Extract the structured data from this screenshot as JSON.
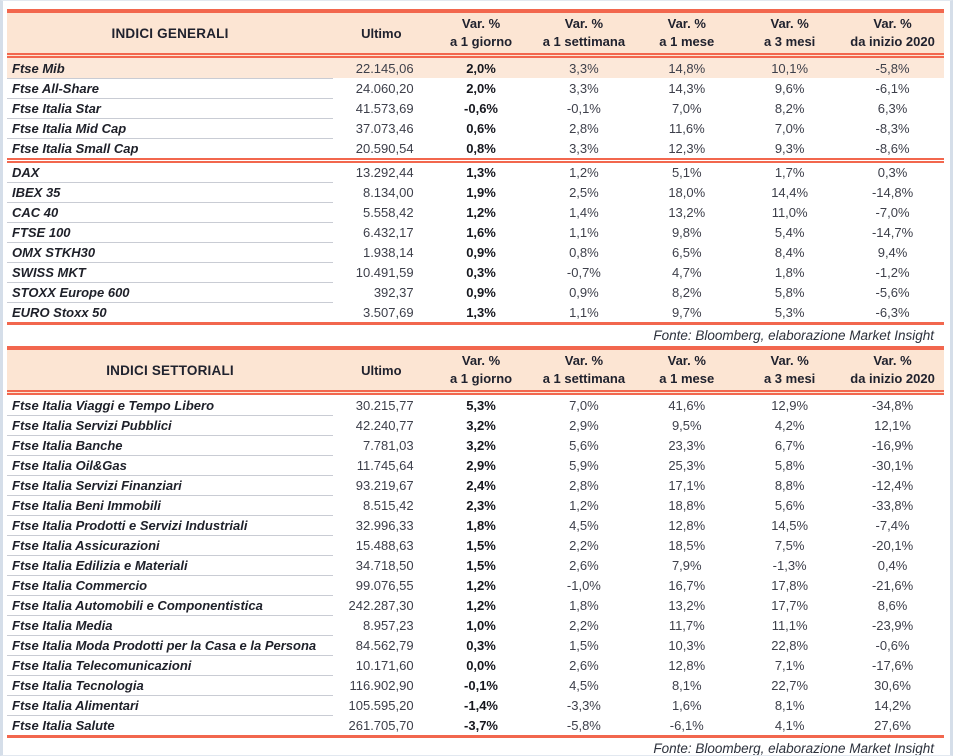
{
  "page": {
    "kind": "market-report",
    "colors": {
      "accent_line": "#f2674e",
      "header_bg": "#fce5d3",
      "highlight_row_bg": "#fce8d9",
      "row_divider": "#c9ccd4",
      "frame_border": "#d5dee9"
    }
  },
  "tables": [
    {
      "header": {
        "title": "INDICI GENERALI",
        "ultimo": "Ultimo",
        "var_cols": [
          {
            "top": "Var. %",
            "bottom": "a 1 giorno"
          },
          {
            "top": "Var. %",
            "bottom": "a 1 settimana"
          },
          {
            "top": "Var. %",
            "bottom": "a 1 mese"
          },
          {
            "top": "Var. %",
            "bottom": "a 3 mesi"
          },
          {
            "top": "Var. %",
            "bottom": "da inizio 2020"
          }
        ]
      },
      "groups": [
        [
          {
            "name": "Ftse Mib",
            "ultimo": "22.145,06",
            "d1": "2,0%",
            "w1": "3,3%",
            "m1": "14,8%",
            "m3": "10,1%",
            "ytd": "-5,8%",
            "highlight": true
          },
          {
            "name": "Ftse All-Share",
            "ultimo": "24.060,20",
            "d1": "2,0%",
            "w1": "3,3%",
            "m1": "14,3%",
            "m3": "9,6%",
            "ytd": "-6,1%"
          },
          {
            "name": "Ftse Italia Star",
            "ultimo": "41.573,69",
            "d1": "-0,6%",
            "w1": "-0,1%",
            "m1": "7,0%",
            "m3": "8,2%",
            "ytd": "6,3%"
          },
          {
            "name": "Ftse Italia Mid Cap",
            "ultimo": "37.073,46",
            "d1": "0,6%",
            "w1": "2,8%",
            "m1": "11,6%",
            "m3": "7,0%",
            "ytd": "-8,3%"
          },
          {
            "name": "Ftse Italia Small Cap",
            "ultimo": "20.590,54",
            "d1": "0,8%",
            "w1": "3,3%",
            "m1": "12,3%",
            "m3": "9,3%",
            "ytd": "-8,6%"
          }
        ],
        [
          {
            "name": "DAX",
            "ultimo": "13.292,44",
            "d1": "1,3%",
            "w1": "1,2%",
            "m1": "5,1%",
            "m3": "1,7%",
            "ytd": "0,3%"
          },
          {
            "name": "IBEX 35",
            "ultimo": "8.134,00",
            "d1": "1,9%",
            "w1": "2,5%",
            "m1": "18,0%",
            "m3": "14,4%",
            "ytd": "-14,8%"
          },
          {
            "name": "CAC 40",
            "ultimo": "5.558,42",
            "d1": "1,2%",
            "w1": "1,4%",
            "m1": "13,2%",
            "m3": "11,0%",
            "ytd": "-7,0%"
          },
          {
            "name": "FTSE 100",
            "ultimo": "6.432,17",
            "d1": "1,6%",
            "w1": "1,1%",
            "m1": "9,8%",
            "m3": "5,4%",
            "ytd": "-14,7%"
          },
          {
            "name": "OMX STKH30",
            "ultimo": "1.938,14",
            "d1": "0,9%",
            "w1": "0,8%",
            "m1": "6,5%",
            "m3": "8,4%",
            "ytd": "9,4%"
          },
          {
            "name": "SWISS MKT",
            "ultimo": "10.491,59",
            "d1": "0,3%",
            "w1": "-0,7%",
            "m1": "4,7%",
            "m3": "1,8%",
            "ytd": "-1,2%"
          },
          {
            "name": "STOXX Europe 600",
            "ultimo": "392,37",
            "d1": "0,9%",
            "w1": "0,9%",
            "m1": "8,2%",
            "m3": "5,8%",
            "ytd": "-5,6%"
          },
          {
            "name": "EURO Stoxx 50",
            "ultimo": "3.507,69",
            "d1": "1,3%",
            "w1": "1,1%",
            "m1": "9,7%",
            "m3": "5,3%",
            "ytd": "-6,3%"
          }
        ]
      ],
      "source_note": "Fonte: Bloomberg, elaborazione Market Insight"
    },
    {
      "header": {
        "title": "INDICI SETTORIALI",
        "ultimo": "Ultimo",
        "var_cols": [
          {
            "top": "Var. %",
            "bottom": "a 1 giorno"
          },
          {
            "top": "Var. %",
            "bottom": "a 1 settimana"
          },
          {
            "top": "Var. %",
            "bottom": "a 1 mese"
          },
          {
            "top": "Var. %",
            "bottom": "a 3 mesi"
          },
          {
            "top": "Var. %",
            "bottom": "da inizio 2020"
          }
        ]
      },
      "groups": [
        [
          {
            "name": "Ftse Italia Viaggi e Tempo Libero",
            "ultimo": "30.215,77",
            "d1": "5,3%",
            "w1": "7,0%",
            "m1": "41,6%",
            "m3": "12,9%",
            "ytd": "-34,8%"
          },
          {
            "name": "Ftse Italia Servizi Pubblici",
            "ultimo": "42.240,77",
            "d1": "3,2%",
            "w1": "2,9%",
            "m1": "9,5%",
            "m3": "4,2%",
            "ytd": "12,1%"
          },
          {
            "name": "Ftse Italia Banche",
            "ultimo": "7.781,03",
            "d1": "3,2%",
            "w1": "5,6%",
            "m1": "23,3%",
            "m3": "6,7%",
            "ytd": "-16,9%"
          },
          {
            "name": "Ftse Italia Oil&Gas",
            "ultimo": "11.745,64",
            "d1": "2,9%",
            "w1": "5,9%",
            "m1": "25,3%",
            "m3": "5,8%",
            "ytd": "-30,1%"
          },
          {
            "name": "Ftse Italia Servizi Finanziari",
            "ultimo": "93.219,67",
            "d1": "2,4%",
            "w1": "2,8%",
            "m1": "17,1%",
            "m3": "8,8%",
            "ytd": "-12,4%"
          },
          {
            "name": "Ftse Italia Beni Immobili",
            "ultimo": "8.515,42",
            "d1": "2,3%",
            "w1": "1,2%",
            "m1": "18,8%",
            "m3": "5,6%",
            "ytd": "-33,8%"
          },
          {
            "name": "Ftse Italia Prodotti e Servizi Industriali",
            "ultimo": "32.996,33",
            "d1": "1,8%",
            "w1": "4,5%",
            "m1": "12,8%",
            "m3": "14,5%",
            "ytd": "-7,4%"
          },
          {
            "name": "Ftse Italia Assicurazioni",
            "ultimo": "15.488,63",
            "d1": "1,5%",
            "w1": "2,2%",
            "m1": "18,5%",
            "m3": "7,5%",
            "ytd": "-20,1%"
          },
          {
            "name": "Ftse Italia Edilizia e Materiali",
            "ultimo": "34.718,50",
            "d1": "1,5%",
            "w1": "2,6%",
            "m1": "7,9%",
            "m3": "-1,3%",
            "ytd": "0,4%"
          },
          {
            "name": "Ftse Italia Commercio",
            "ultimo": "99.076,55",
            "d1": "1,2%",
            "w1": "-1,0%",
            "m1": "16,7%",
            "m3": "17,8%",
            "ytd": "-21,6%"
          },
          {
            "name": "Ftse Italia Automobili e Componentistica",
            "ultimo": "242.287,30",
            "d1": "1,2%",
            "w1": "1,8%",
            "m1": "13,2%",
            "m3": "17,7%",
            "ytd": "8,6%"
          },
          {
            "name": "Ftse Italia Media",
            "ultimo": "8.957,23",
            "d1": "1,0%",
            "w1": "2,2%",
            "m1": "11,7%",
            "m3": "11,1%",
            "ytd": "-23,9%"
          },
          {
            "name": "Ftse Italia Moda Prodotti per la Casa e la Persona",
            "ultimo": "84.562,79",
            "d1": "0,3%",
            "w1": "1,5%",
            "m1": "10,3%",
            "m3": "22,8%",
            "ytd": "-0,6%"
          },
          {
            "name": "Ftse Italia Telecomunicazioni",
            "ultimo": "10.171,60",
            "d1": "0,0%",
            "w1": "2,6%",
            "m1": "12,8%",
            "m3": "7,1%",
            "ytd": "-17,6%"
          },
          {
            "name": "Ftse Italia Tecnologia",
            "ultimo": "116.902,90",
            "d1": "-0,1%",
            "w1": "4,5%",
            "m1": "8,1%",
            "m3": "22,7%",
            "ytd": "30,6%"
          },
          {
            "name": "Ftse Italia Alimentari",
            "ultimo": "105.595,20",
            "d1": "-1,4%",
            "w1": "-3,3%",
            "m1": "1,6%",
            "m3": "8,1%",
            "ytd": "14,2%"
          },
          {
            "name": "Ftse Italia Salute",
            "ultimo": "261.705,70",
            "d1": "-3,7%",
            "w1": "-5,8%",
            "m1": "-6,1%",
            "m3": "4,1%",
            "ytd": "27,6%"
          }
        ]
      ],
      "source_note": "Fonte: Bloomberg, elaborazione Market Insight"
    }
  ]
}
